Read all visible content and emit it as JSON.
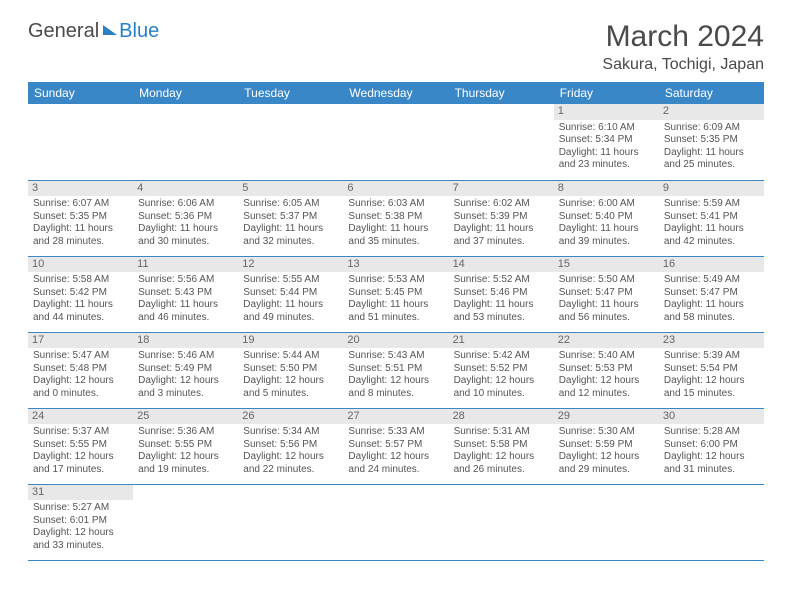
{
  "logo": {
    "part1": "General",
    "part2": "Blue"
  },
  "title": "March 2024",
  "location": "Sakura, Tochigi, Japan",
  "colors": {
    "header_bar": "#3a87c7",
    "daynum_bg": "#e8e8e8",
    "row_divider": "#3a87c7",
    "text": "#555555",
    "logo_blue": "#2b7fc4"
  },
  "dow": [
    "Sunday",
    "Monday",
    "Tuesday",
    "Wednesday",
    "Thursday",
    "Friday",
    "Saturday"
  ],
  "weeks": [
    [
      {
        "n": "",
        "empty": true
      },
      {
        "n": "",
        "empty": true
      },
      {
        "n": "",
        "empty": true
      },
      {
        "n": "",
        "empty": true
      },
      {
        "n": "",
        "empty": true
      },
      {
        "n": "1",
        "sr": "Sunrise: 6:10 AM",
        "ss": "Sunset: 5:34 PM",
        "dl1": "Daylight: 11 hours",
        "dl2": "and 23 minutes."
      },
      {
        "n": "2",
        "sr": "Sunrise: 6:09 AM",
        "ss": "Sunset: 5:35 PM",
        "dl1": "Daylight: 11 hours",
        "dl2": "and 25 minutes."
      }
    ],
    [
      {
        "n": "3",
        "sr": "Sunrise: 6:07 AM",
        "ss": "Sunset: 5:35 PM",
        "dl1": "Daylight: 11 hours",
        "dl2": "and 28 minutes."
      },
      {
        "n": "4",
        "sr": "Sunrise: 6:06 AM",
        "ss": "Sunset: 5:36 PM",
        "dl1": "Daylight: 11 hours",
        "dl2": "and 30 minutes."
      },
      {
        "n": "5",
        "sr": "Sunrise: 6:05 AM",
        "ss": "Sunset: 5:37 PM",
        "dl1": "Daylight: 11 hours",
        "dl2": "and 32 minutes."
      },
      {
        "n": "6",
        "sr": "Sunrise: 6:03 AM",
        "ss": "Sunset: 5:38 PM",
        "dl1": "Daylight: 11 hours",
        "dl2": "and 35 minutes."
      },
      {
        "n": "7",
        "sr": "Sunrise: 6:02 AM",
        "ss": "Sunset: 5:39 PM",
        "dl1": "Daylight: 11 hours",
        "dl2": "and 37 minutes."
      },
      {
        "n": "8",
        "sr": "Sunrise: 6:00 AM",
        "ss": "Sunset: 5:40 PM",
        "dl1": "Daylight: 11 hours",
        "dl2": "and 39 minutes."
      },
      {
        "n": "9",
        "sr": "Sunrise: 5:59 AM",
        "ss": "Sunset: 5:41 PM",
        "dl1": "Daylight: 11 hours",
        "dl2": "and 42 minutes."
      }
    ],
    [
      {
        "n": "10",
        "sr": "Sunrise: 5:58 AM",
        "ss": "Sunset: 5:42 PM",
        "dl1": "Daylight: 11 hours",
        "dl2": "and 44 minutes."
      },
      {
        "n": "11",
        "sr": "Sunrise: 5:56 AM",
        "ss": "Sunset: 5:43 PM",
        "dl1": "Daylight: 11 hours",
        "dl2": "and 46 minutes."
      },
      {
        "n": "12",
        "sr": "Sunrise: 5:55 AM",
        "ss": "Sunset: 5:44 PM",
        "dl1": "Daylight: 11 hours",
        "dl2": "and 49 minutes."
      },
      {
        "n": "13",
        "sr": "Sunrise: 5:53 AM",
        "ss": "Sunset: 5:45 PM",
        "dl1": "Daylight: 11 hours",
        "dl2": "and 51 minutes."
      },
      {
        "n": "14",
        "sr": "Sunrise: 5:52 AM",
        "ss": "Sunset: 5:46 PM",
        "dl1": "Daylight: 11 hours",
        "dl2": "and 53 minutes."
      },
      {
        "n": "15",
        "sr": "Sunrise: 5:50 AM",
        "ss": "Sunset: 5:47 PM",
        "dl1": "Daylight: 11 hours",
        "dl2": "and 56 minutes."
      },
      {
        "n": "16",
        "sr": "Sunrise: 5:49 AM",
        "ss": "Sunset: 5:47 PM",
        "dl1": "Daylight: 11 hours",
        "dl2": "and 58 minutes."
      }
    ],
    [
      {
        "n": "17",
        "sr": "Sunrise: 5:47 AM",
        "ss": "Sunset: 5:48 PM",
        "dl1": "Daylight: 12 hours",
        "dl2": "and 0 minutes."
      },
      {
        "n": "18",
        "sr": "Sunrise: 5:46 AM",
        "ss": "Sunset: 5:49 PM",
        "dl1": "Daylight: 12 hours",
        "dl2": "and 3 minutes."
      },
      {
        "n": "19",
        "sr": "Sunrise: 5:44 AM",
        "ss": "Sunset: 5:50 PM",
        "dl1": "Daylight: 12 hours",
        "dl2": "and 5 minutes."
      },
      {
        "n": "20",
        "sr": "Sunrise: 5:43 AM",
        "ss": "Sunset: 5:51 PM",
        "dl1": "Daylight: 12 hours",
        "dl2": "and 8 minutes."
      },
      {
        "n": "21",
        "sr": "Sunrise: 5:42 AM",
        "ss": "Sunset: 5:52 PM",
        "dl1": "Daylight: 12 hours",
        "dl2": "and 10 minutes."
      },
      {
        "n": "22",
        "sr": "Sunrise: 5:40 AM",
        "ss": "Sunset: 5:53 PM",
        "dl1": "Daylight: 12 hours",
        "dl2": "and 12 minutes."
      },
      {
        "n": "23",
        "sr": "Sunrise: 5:39 AM",
        "ss": "Sunset: 5:54 PM",
        "dl1": "Daylight: 12 hours",
        "dl2": "and 15 minutes."
      }
    ],
    [
      {
        "n": "24",
        "sr": "Sunrise: 5:37 AM",
        "ss": "Sunset: 5:55 PM",
        "dl1": "Daylight: 12 hours",
        "dl2": "and 17 minutes."
      },
      {
        "n": "25",
        "sr": "Sunrise: 5:36 AM",
        "ss": "Sunset: 5:55 PM",
        "dl1": "Daylight: 12 hours",
        "dl2": "and 19 minutes."
      },
      {
        "n": "26",
        "sr": "Sunrise: 5:34 AM",
        "ss": "Sunset: 5:56 PM",
        "dl1": "Daylight: 12 hours",
        "dl2": "and 22 minutes."
      },
      {
        "n": "27",
        "sr": "Sunrise: 5:33 AM",
        "ss": "Sunset: 5:57 PM",
        "dl1": "Daylight: 12 hours",
        "dl2": "and 24 minutes."
      },
      {
        "n": "28",
        "sr": "Sunrise: 5:31 AM",
        "ss": "Sunset: 5:58 PM",
        "dl1": "Daylight: 12 hours",
        "dl2": "and 26 minutes."
      },
      {
        "n": "29",
        "sr": "Sunrise: 5:30 AM",
        "ss": "Sunset: 5:59 PM",
        "dl1": "Daylight: 12 hours",
        "dl2": "and 29 minutes."
      },
      {
        "n": "30",
        "sr": "Sunrise: 5:28 AM",
        "ss": "Sunset: 6:00 PM",
        "dl1": "Daylight: 12 hours",
        "dl2": "and 31 minutes."
      }
    ],
    [
      {
        "n": "31",
        "sr": "Sunrise: 5:27 AM",
        "ss": "Sunset: 6:01 PM",
        "dl1": "Daylight: 12 hours",
        "dl2": "and 33 minutes."
      },
      {
        "n": "",
        "empty": true
      },
      {
        "n": "",
        "empty": true
      },
      {
        "n": "",
        "empty": true
      },
      {
        "n": "",
        "empty": true
      },
      {
        "n": "",
        "empty": true
      },
      {
        "n": "",
        "empty": true
      }
    ]
  ]
}
